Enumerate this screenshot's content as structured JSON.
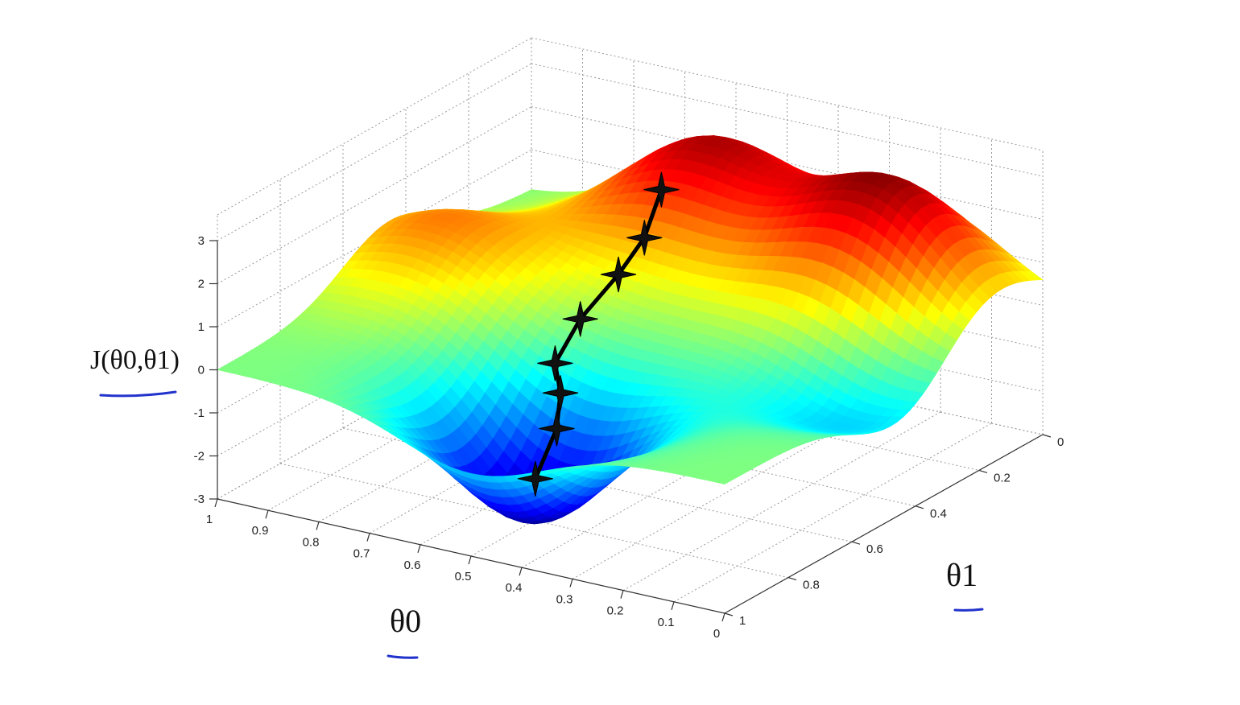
{
  "chart_data": {
    "type": "surface",
    "title": "",
    "zlabel": "J(θ0,θ1)",
    "xlabel": "θ0",
    "ylabel": "θ1",
    "xlim": [
      0,
      1
    ],
    "ylim": [
      0,
      1
    ],
    "zlim": [
      -3,
      3
    ],
    "grid": true,
    "colormap": "jet",
    "x_ticks": [
      "1",
      "0.9",
      "0.8",
      "0.7",
      "0.6",
      "0.5",
      "0.4",
      "0.3",
      "0.2",
      "0.1",
      "0"
    ],
    "y_ticks": [
      "0",
      "0.2",
      "0.4",
      "0.6",
      "0.8",
      "1"
    ],
    "z_ticks": [
      "3",
      "2",
      "1",
      "0",
      "-1",
      "-2",
      "-3"
    ],
    "surface_peaks": [
      {
        "kind": "peak",
        "theta0": 0.6,
        "theta1": 0.1,
        "z": 2.6
      },
      {
        "kind": "peak",
        "theta0": 0.22,
        "theta1": 0.15,
        "z": 2.9
      },
      {
        "kind": "peak",
        "theta0": 0.9,
        "theta1": 0.45,
        "z": 1.5
      },
      {
        "kind": "valley",
        "theta0": 0.5,
        "theta1": 0.8,
        "z": -3.0
      },
      {
        "kind": "valley",
        "theta0": 0.1,
        "theta1": 0.45,
        "z": -1.2
      }
    ],
    "descent_path": [
      {
        "theta0": 0.61,
        "theta1": 0.22,
        "z": 2.0
      },
      {
        "theta0": 0.6,
        "theta1": 0.29,
        "z": 1.2
      },
      {
        "theta0": 0.62,
        "theta1": 0.34,
        "z": 0.5
      },
      {
        "theta0": 0.67,
        "theta1": 0.38,
        "z": -0.5
      },
      {
        "theta0": 0.67,
        "theta1": 0.46,
        "z": -1.2
      },
      {
        "theta0": 0.61,
        "theta1": 0.54,
        "z": -1.4
      },
      {
        "theta0": 0.58,
        "theta1": 0.6,
        "z": -1.9
      },
      {
        "theta0": 0.56,
        "theta1": 0.7,
        "z": -2.6
      }
    ],
    "underline_color": "#2233cc",
    "path_color": "#000000"
  }
}
